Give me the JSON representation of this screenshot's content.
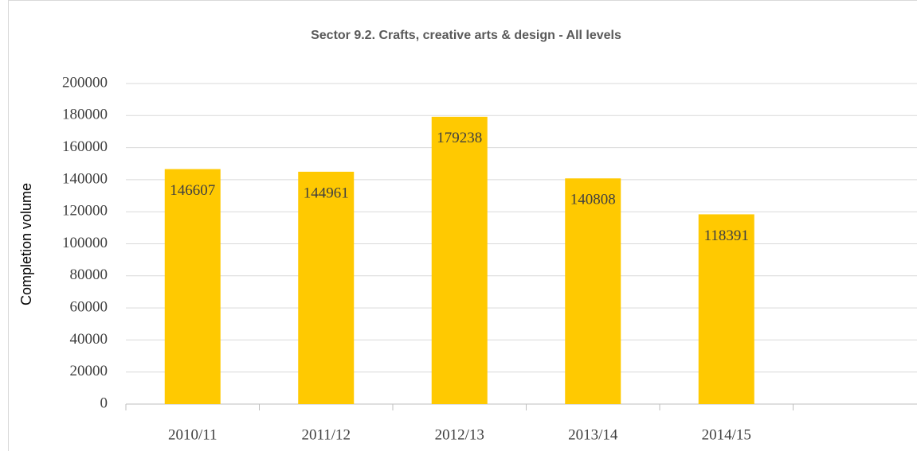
{
  "chart_data": {
    "type": "bar",
    "title": "Sector 9.2. Crafts, creative arts & design - All levels",
    "y_label": "Completion volume",
    "categories": [
      "2010/11",
      "2011/12",
      "2012/13",
      "2013/14",
      "2014/15",
      null
    ],
    "values": [
      146607,
      144961,
      179238,
      140808,
      118391,
      null
    ],
    "color": "#ffc901",
    "ylim": [
      0,
      200000
    ],
    "yticks": [
      0,
      20000,
      40000,
      60000,
      80000,
      100000,
      120000,
      140000,
      160000,
      180000,
      200000
    ],
    "grid": true
  }
}
